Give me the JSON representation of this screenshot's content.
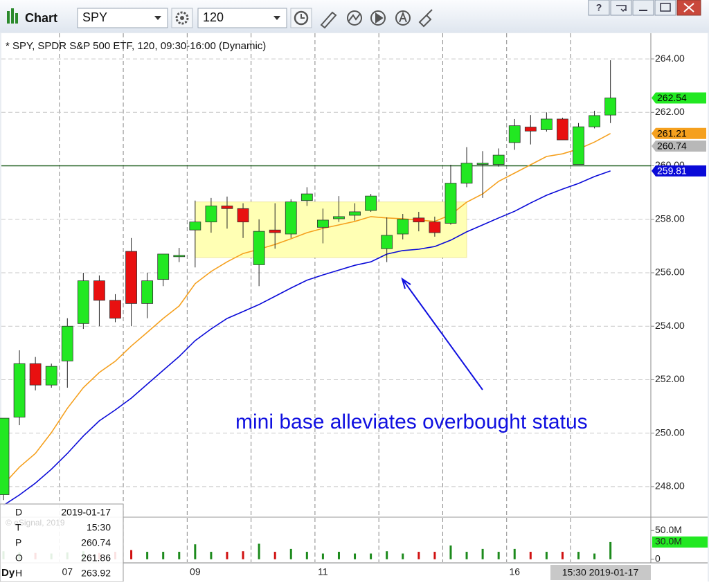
{
  "toolbar": {
    "title": "Chart",
    "symbol": "SPY",
    "interval": "120",
    "help": "?"
  },
  "chart_data": {
    "type": "candlestick",
    "title": "* SPY, SPDR S&P 500 ETF, 120, 09:30-16:00 (Dynamic)",
    "categories": [
      null,
      null,
      null,
      null,
      "07",
      null,
      null,
      null,
      null,
      null,
      null,
      null,
      "09",
      null,
      null,
      null,
      null,
      null,
      null,
      null,
      "11",
      null,
      null,
      null,
      null,
      null,
      null,
      null,
      null,
      null,
      null,
      null,
      "16",
      null,
      null,
      null,
      null,
      null,
      null
    ],
    "open": [
      247.7,
      250.6,
      252.6,
      251.8,
      252.7,
      254.1,
      255.7,
      254.97,
      256.8,
      254.85,
      255.75,
      256.6,
      257.6,
      257.9,
      258.5,
      258.4,
      256.3,
      257.6,
      257.45,
      258.7,
      257.7,
      258.02,
      258.15,
      258.33,
      256.9,
      257.45,
      258.05,
      257.9,
      257.85,
      259.35,
      260.05,
      260.05,
      260.87,
      261.45,
      261.35,
      261.75,
      260.05,
      261.46,
      261.9
    ],
    "high": [
      250.56,
      253.1,
      252.85,
      252.6,
      254.3,
      256.0,
      255.9,
      255.2,
      257.3,
      256.0,
      256.7,
      256.93,
      258.7,
      258.8,
      258.85,
      258.6,
      258.0,
      258.6,
      258.75,
      259.2,
      258.4,
      258.87,
      258.6,
      258.95,
      258.07,
      258.2,
      258.28,
      258.1,
      260.04,
      260.7,
      260.55,
      260.65,
      261.75,
      261.9,
      262.0,
      261.8,
      261.6,
      262.06,
      263.95
    ],
    "low": [
      247.5,
      250.3,
      251.6,
      251.7,
      251.7,
      253.9,
      254.0,
      254.15,
      254.0,
      254.3,
      255.5,
      256.4,
      256.2,
      257.5,
      257.65,
      257.3,
      255.5,
      256.9,
      257.3,
      258.5,
      257.1,
      257.9,
      257.95,
      258.28,
      256.4,
      257.25,
      257.55,
      257.35,
      257.8,
      259.2,
      258.8,
      259.97,
      260.6,
      260.8,
      261.28,
      260.97,
      260.04,
      261.4,
      261.6
    ],
    "close": [
      250.56,
      252.6,
      251.8,
      252.5,
      254.0,
      255.7,
      254.97,
      254.3,
      254.85,
      255.7,
      256.7,
      256.65,
      257.9,
      258.5,
      258.4,
      257.9,
      257.55,
      257.5,
      258.65,
      258.95,
      257.97,
      258.1,
      258.28,
      258.87,
      257.4,
      258.0,
      257.9,
      257.5,
      259.35,
      260.1,
      260.1,
      260.4,
      261.5,
      261.3,
      261.75,
      260.97,
      261.46,
      261.88,
      262.54
    ],
    "up_color": "#22e822",
    "down_color": "#e81010",
    "overlays": [
      {
        "color": "#f5a01e",
        "values": [
          248.08,
          248.73,
          249.24,
          250.02,
          250.93,
          251.7,
          252.27,
          252.69,
          253.26,
          253.77,
          254.29,
          254.76,
          255.59,
          256.05,
          256.41,
          256.72,
          256.88,
          257.06,
          257.27,
          257.5,
          257.66,
          257.79,
          257.92,
          258.1,
          258.05,
          258.02,
          257.97,
          257.92,
          258.17,
          258.64,
          258.95,
          259.42,
          259.73,
          260.04,
          260.35,
          260.45,
          260.63,
          260.89,
          261.21
        ]
      },
      {
        "color": "#0a0ad8",
        "values": [
          247.3,
          247.69,
          248.13,
          248.65,
          249.24,
          249.89,
          250.46,
          250.87,
          251.31,
          251.83,
          252.35,
          252.87,
          253.46,
          253.9,
          254.29,
          254.55,
          254.81,
          255.12,
          255.43,
          255.72,
          255.92,
          256.1,
          256.28,
          256.41,
          256.7,
          256.83,
          256.88,
          256.98,
          257.22,
          257.53,
          257.79,
          258.05,
          258.3,
          258.61,
          258.9,
          259.13,
          259.34,
          259.6,
          259.81
        ]
      }
    ],
    "ylim": [
      246.91,
      264.96
    ],
    "yticks": [
      {
        "value": 248,
        "label": "248.00"
      },
      {
        "value": 250,
        "label": "250.00"
      },
      {
        "value": 252,
        "label": "252.00"
      },
      {
        "value": 254,
        "label": "254.00"
      },
      {
        "value": 256,
        "label": "256.00"
      },
      {
        "value": 258,
        "label": "258.00"
      },
      {
        "value": 260,
        "label": "260.00"
      },
      {
        "value": 262,
        "label": "262.00"
      },
      {
        "value": 264,
        "label": "264.00"
      }
    ],
    "grid": true,
    "hline": {
      "value": 260,
      "color": "#1f5f1f"
    },
    "highlight": {
      "x": [
        12,
        29
      ],
      "y": [
        256.57,
        258.65
      ],
      "color": "#ffffb4"
    },
    "price_tags": [
      {
        "value": 262.54,
        "color": "#22e822",
        "text_color": "#000000"
      },
      {
        "value": 261.21,
        "color": "#f5a01e",
        "text_color": "#000000"
      },
      {
        "value": 260.74,
        "color": "#b8b8b8",
        "text_color": "#000000"
      },
      {
        "value": 259.81,
        "color": "#0a0ad8",
        "text_color": "#ffffff"
      }
    ],
    "annotation": "mini base alleviates overbought status",
    "annotation_color": "#1010e0",
    "volume": {
      "values": [
        14,
        12,
        11,
        10,
        12,
        14,
        11,
        13,
        16,
        13,
        13,
        13,
        26,
        13,
        13,
        14,
        27,
        13,
        18,
        13,
        10,
        13,
        10,
        10,
        14,
        10,
        13,
        13,
        24,
        13,
        18,
        13,
        18,
        13,
        13,
        13,
        13,
        10,
        30
      ],
      "ylim": [
        -5,
        72
      ],
      "yticks": [
        {
          "value": 50,
          "label": "50.0M"
        },
        0
      ],
      "tag": {
        "value": 30,
        "label": "30.0M",
        "color": "#22e822"
      }
    },
    "cursor_label": "15:30 2019-01-17"
  },
  "data_window": {
    "rows": [
      [
        "D",
        "2019-01-17"
      ],
      [
        "T",
        "15:30"
      ],
      [
        "P",
        "260.74"
      ],
      [
        "O",
        "261.86"
      ],
      [
        "H",
        "263.92"
      ]
    ]
  },
  "copyright": "© eSignal, 2019",
  "corner_label": "Dy"
}
